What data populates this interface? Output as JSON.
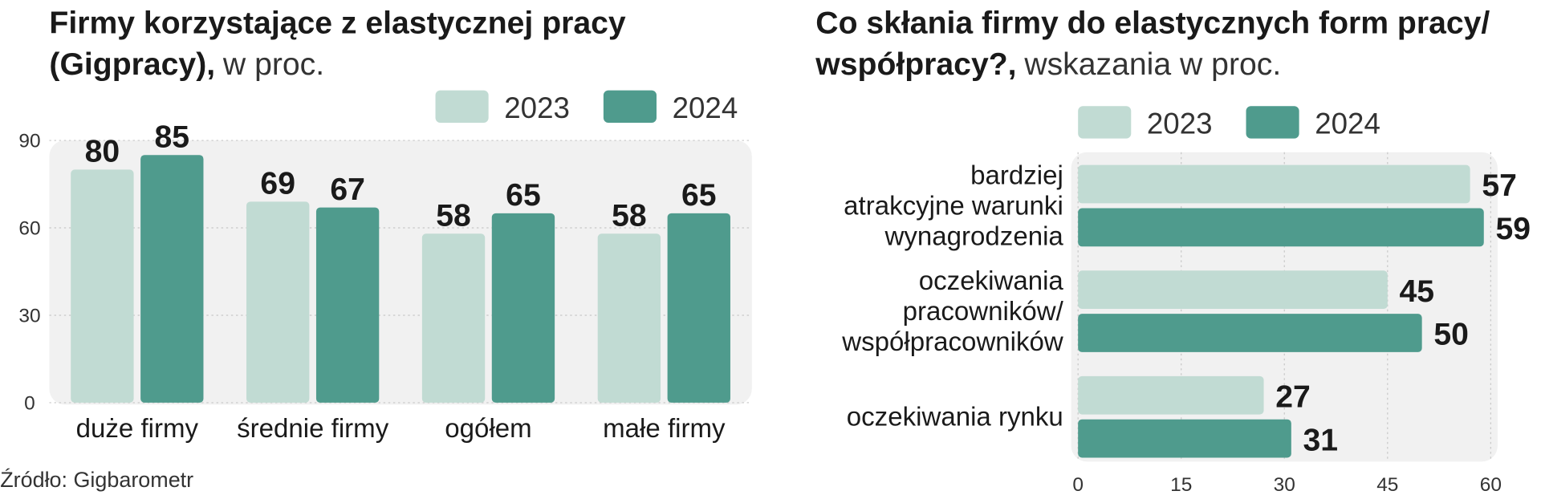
{
  "chart_data": [
    {
      "type": "bar",
      "title_lines": [
        "Firmy korzystające z elastycznej pracy",
        "(Gigpracy),"
      ],
      "subtitle": "w proc.",
      "categories": [
        "duże firmy",
        "średnie firmy",
        "ogółem",
        "małe firmy"
      ],
      "series": [
        {
          "name": "2023",
          "color": "#c1dbd3",
          "values": [
            80,
            69,
            58,
            58
          ]
        },
        {
          "name": "2024",
          "color": "#4f9b8d",
          "values": [
            85,
            67,
            65,
            65
          ]
        }
      ],
      "ylim": [
        0,
        90
      ],
      "yticks": [
        0,
        30,
        60,
        90
      ],
      "grid": true
    },
    {
      "type": "barh",
      "title_lines": [
        "Co skłania firmy do elastycznych form pracy/",
        "współpracy?,"
      ],
      "subtitle": "wskazania w proc.",
      "categories": [
        [
          "bardziej",
          "atrakcyjne warunki",
          "wynagrodzenia"
        ],
        [
          "oczekiwania",
          "pracowników/",
          "współpracowników"
        ],
        [
          "oczekiwania rynku"
        ]
      ],
      "series": [
        {
          "name": "2023",
          "color": "#c1dbd3",
          "values": [
            57,
            45,
            27
          ]
        },
        {
          "name": "2024",
          "color": "#4f9b8d",
          "values": [
            59,
            50,
            31
          ]
        }
      ],
      "xlim": [
        0,
        60
      ],
      "xticks": [
        0,
        15,
        30,
        45,
        60
      ],
      "grid": true
    }
  ],
  "source": "Źródło: Gigbarometr"
}
